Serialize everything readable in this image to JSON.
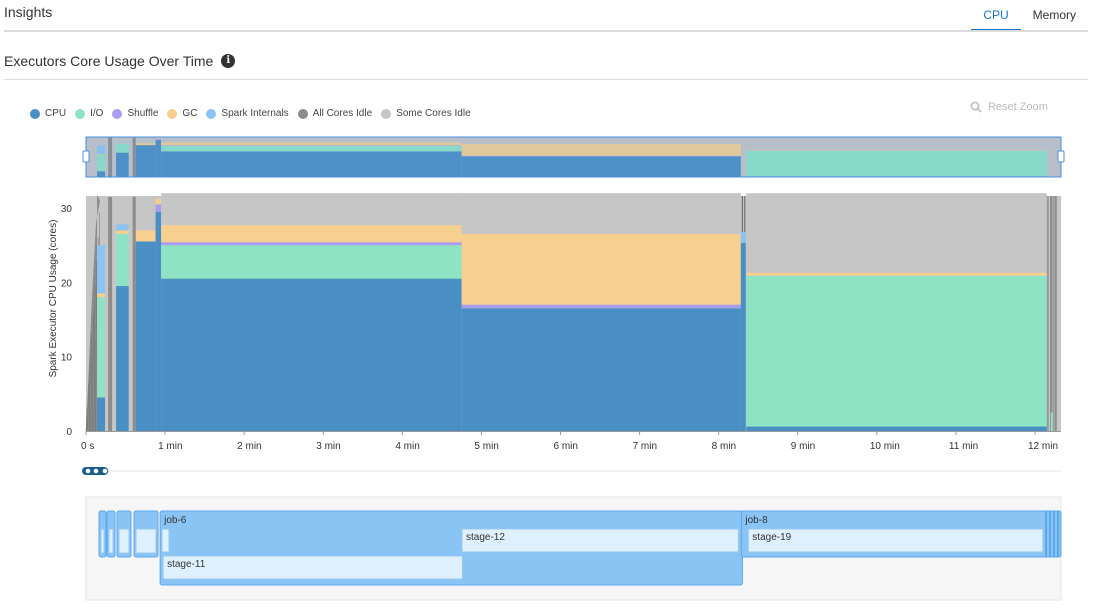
{
  "header": {
    "title": "Insights"
  },
  "tabs": [
    {
      "label": "CPU",
      "active": true
    },
    {
      "label": "Memory",
      "active": false
    }
  ],
  "section": {
    "title": "Executors Core Usage Over Time",
    "info_icon": "info-icon"
  },
  "legend": [
    {
      "label": "CPU",
      "color": "#4a8fc3"
    },
    {
      "label": "I/O",
      "color": "#8ee3c5"
    },
    {
      "label": "Shuffle",
      "color": "#ab9cf0"
    },
    {
      "label": "GC",
      "color": "#f7cf8f"
    },
    {
      "label": "Spark Internals",
      "color": "#8ac4f5"
    },
    {
      "label": "All Cores Idle",
      "color": "#8c8c8c"
    },
    {
      "label": "Some Cores Idle",
      "color": "#c6c6c6"
    }
  ],
  "reset_zoom": {
    "label": "Reset Zoom",
    "icon": "search-icon"
  },
  "chart_data": {
    "type": "area",
    "ylabel": "Spark Executor CPU Usage (cores)",
    "ylim": [
      0,
      32
    ],
    "y_ticks": [
      "0",
      "10",
      "20",
      "30"
    ],
    "x_ticks": [
      "0 s",
      "1 min",
      "2 min",
      "3 min",
      "4 min",
      "5 min",
      "6 min",
      "7 min",
      "8 min",
      "9 min",
      "10 min",
      "11 min",
      "12 min"
    ],
    "x_range_min": [
      0,
      12.3
    ],
    "stack_order": [
      "CPU",
      "I/O",
      "Shuffle",
      "GC",
      "Spark Internals",
      "Some Cores Idle"
    ],
    "segments": [
      {
        "start": 0.95,
        "end": 4.75,
        "CPU": 20.5,
        "I/O": 4.5,
        "Shuffle": 0.4,
        "GC": 2.3,
        "Spark Internals": 0,
        "Some Cores Idle": 4.3
      },
      {
        "start": 4.75,
        "end": 8.28,
        "CPU": 16.5,
        "I/O": 0,
        "Shuffle": 0.5,
        "GC": 9.5,
        "Spark Internals": 0,
        "Some Cores Idle": 5.5
      },
      {
        "start": 8.35,
        "end": 12.15,
        "CPU": 0.6,
        "I/O": 20.3,
        "Shuffle": 0,
        "GC": 0.4,
        "Spark Internals": 0,
        "Some Cores Idle": 10.7
      }
    ],
    "early": [
      {
        "start": 0.14,
        "end": 0.24,
        "CPU": 4.5,
        "I/O": 13.5,
        "Shuffle": 0,
        "GC": 0.5,
        "Spark Internals": 6.5,
        "All Cores Idle": 6
      },
      {
        "start": 0.28,
        "end": 0.33,
        "CPU": 0,
        "I/O": 0,
        "Shuffle": 0,
        "GC": 0,
        "Spark Internals": 0,
        "All Cores Idle": 31.5
      },
      {
        "start": 0.38,
        "end": 0.54,
        "CPU": 19.5,
        "I/O": 7,
        "Shuffle": 0,
        "GC": 0.5,
        "Spark Internals": 0.8,
        "Some Cores Idle": 3.7
      },
      {
        "start": 0.59,
        "end": 0.63,
        "CPU": 0,
        "I/O": 0,
        "Shuffle": 0,
        "GC": 0,
        "Spark Internals": 0,
        "All Cores Idle": 31.5
      },
      {
        "start": 0.63,
        "end": 0.88,
        "CPU": 25.5,
        "I/O": 0,
        "Shuffle": 0,
        "GC": 1.5,
        "Spark Internals": 0,
        "Some Cores Idle": 4.5
      },
      {
        "start": 0.88,
        "end": 0.95,
        "CPU": 29.5,
        "I/O": 0,
        "Shuffle": 1,
        "GC": 0.7,
        "Spark Internals": 0,
        "Some Cores Idle": 0.3
      }
    ]
  },
  "timeline": {
    "jobs": [
      {
        "label": "job-6",
        "start": 0.95,
        "end": 8.3
      },
      {
        "label": "job-8",
        "start": 8.3,
        "end": 12.15
      }
    ],
    "stages": [
      {
        "label": "stage-11",
        "start": 1.0,
        "end": 4.76,
        "row": 2
      },
      {
        "label": "stage-12",
        "start": 4.78,
        "end": 8.25,
        "row": 1
      },
      {
        "label": "stage-19",
        "start": 8.4,
        "end": 12.1,
        "row": 1
      }
    ]
  }
}
